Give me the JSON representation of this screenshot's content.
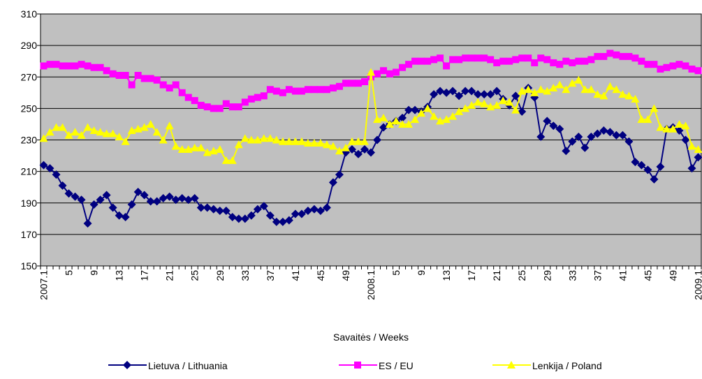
{
  "chart_data": {
    "type": "line",
    "x_label": "Savaitės / Weeks",
    "categories": [
      "2007.1",
      null,
      null,
      null,
      "5",
      null,
      null,
      null,
      "9",
      null,
      null,
      null,
      "13",
      null,
      null,
      null,
      "17",
      null,
      null,
      null,
      "21",
      null,
      null,
      null,
      "25",
      null,
      null,
      null,
      "29",
      null,
      null,
      null,
      "33",
      null,
      null,
      null,
      "37",
      null,
      null,
      null,
      "41",
      null,
      null,
      null,
      "45",
      null,
      null,
      null,
      "49",
      null,
      null,
      null,
      "2008.1",
      null,
      null,
      null,
      "5",
      null,
      null,
      null,
      "9",
      null,
      null,
      null,
      "13",
      null,
      null,
      null,
      "17",
      null,
      null,
      null,
      "21",
      null,
      null,
      null,
      "25",
      null,
      null,
      null,
      "29",
      null,
      null,
      null,
      "33",
      null,
      null,
      null,
      "37",
      null,
      null,
      null,
      "41",
      null,
      null,
      null,
      "45",
      null,
      null,
      null,
      "49",
      null,
      null,
      null,
      "2009.1"
    ],
    "series": [
      {
        "name": "Lietuva / Lithuania",
        "color": "#000080",
        "marker": "diamond",
        "values": [
          214,
          212,
          208,
          201,
          196,
          194,
          192,
          177,
          189,
          192,
          195,
          187,
          182,
          181,
          189,
          197,
          195,
          191,
          191,
          193,
          194,
          192,
          193,
          192,
          193,
          187,
          187,
          186,
          185,
          185,
          181,
          180,
          180,
          182,
          186,
          188,
          182,
          178,
          178,
          179,
          183,
          183,
          185,
          186,
          185,
          187,
          203,
          208,
          222,
          224,
          221,
          224,
          222,
          230,
          238,
          240,
          242,
          244,
          249,
          249,
          248,
          251,
          259,
          261,
          260,
          261,
          258,
          261,
          261,
          259,
          259,
          259,
          261,
          256,
          252,
          258,
          248,
          263,
          257,
          232,
          242,
          239,
          237,
          223,
          229,
          232,
          225,
          232,
          234,
          236,
          235,
          233,
          233,
          229,
          216,
          214,
          211,
          205,
          213,
          237,
          238,
          236,
          230,
          212,
          219
        ]
      },
      {
        "name": "ES / EU",
        "color": "#ff00ff",
        "marker": "square",
        "values": [
          277,
          278,
          278,
          277,
          277,
          277,
          278,
          277,
          276,
          276,
          274,
          272,
          271,
          271,
          265,
          271,
          269,
          269,
          268,
          265,
          263,
          265,
          260,
          257,
          255,
          252,
          251,
          250,
          250,
          253,
          251,
          251,
          254,
          256,
          257,
          258,
          262,
          261,
          260,
          262,
          261,
          261,
          262,
          262,
          262,
          262,
          263,
          264,
          266,
          266,
          266,
          267,
          270,
          272,
          274,
          272,
          273,
          276,
          278,
          280,
          280,
          280,
          281,
          282,
          277,
          281,
          281,
          282,
          282,
          282,
          282,
          281,
          279,
          280,
          280,
          281,
          282,
          282,
          279,
          282,
          281,
          279,
          278,
          280,
          279,
          280,
          280,
          281,
          283,
          283,
          285,
          284,
          283,
          283,
          282,
          280,
          278,
          278,
          275,
          276,
          277,
          278,
          277,
          275,
          274
        ]
      },
      {
        "name": "Lenkija / Poland",
        "color": "#ffff00",
        "marker": "triangle",
        "values": [
          231,
          235,
          238,
          238,
          233,
          235,
          233,
          238,
          236,
          235,
          234,
          234,
          232,
          229,
          236,
          237,
          238,
          240,
          235,
          230,
          239,
          226,
          224,
          224,
          225,
          225,
          222,
          223,
          224,
          217,
          217,
          227,
          231,
          230,
          230,
          231,
          231,
          230,
          229,
          229,
          229,
          229,
          228,
          228,
          228,
          227,
          226,
          223,
          225,
          229,
          229,
          229,
          273,
          243,
          244,
          240,
          242,
          240,
          240,
          243,
          247,
          250,
          245,
          242,
          243,
          245,
          248,
          250,
          252,
          254,
          253,
          251,
          252,
          255,
          254,
          249,
          261,
          262,
          260,
          262,
          261,
          263,
          265,
          262,
          266,
          268,
          262,
          262,
          259,
          258,
          264,
          262,
          259,
          258,
          256,
          243,
          243,
          250,
          238,
          237,
          237,
          240,
          239,
          226,
          224
        ]
      }
    ],
    "ylim": [
      150,
      310
    ],
    "yticks": [
      150,
      170,
      190,
      210,
      230,
      250,
      270,
      290,
      310
    ],
    "grid": true,
    "plot_background": "#c0c0c0",
    "legend": "bottom"
  }
}
